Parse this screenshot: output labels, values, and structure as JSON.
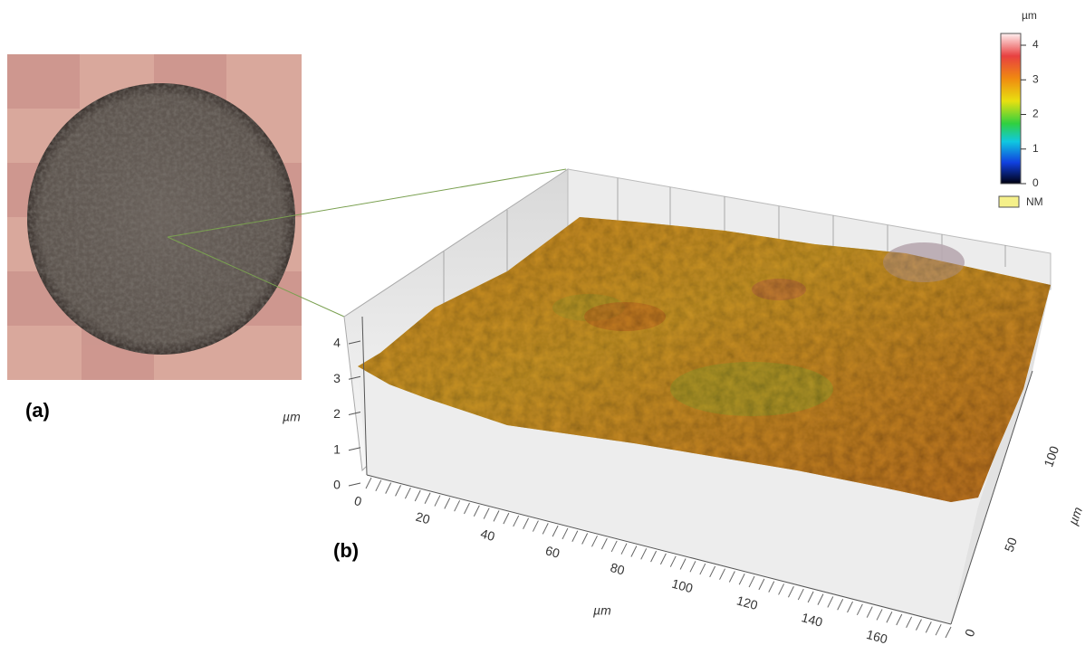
{
  "panels": {
    "a": {
      "label": "(a)"
    },
    "b": {
      "label": "(b)",
      "z_axis": {
        "label": "µm",
        "ticks": [
          0,
          1,
          2,
          3,
          4
        ]
      },
      "x_axis": {
        "label": "µm",
        "ticks": [
          0,
          20,
          40,
          60,
          80,
          100,
          120,
          140,
          160
        ]
      },
      "y_axis": {
        "label": "µm",
        "ticks": [
          0,
          50,
          100
        ]
      },
      "colorbar": {
        "unit": "µm",
        "ticks": [
          0,
          1,
          2,
          3,
          4
        ],
        "nm_label": "NM"
      }
    }
  }
}
